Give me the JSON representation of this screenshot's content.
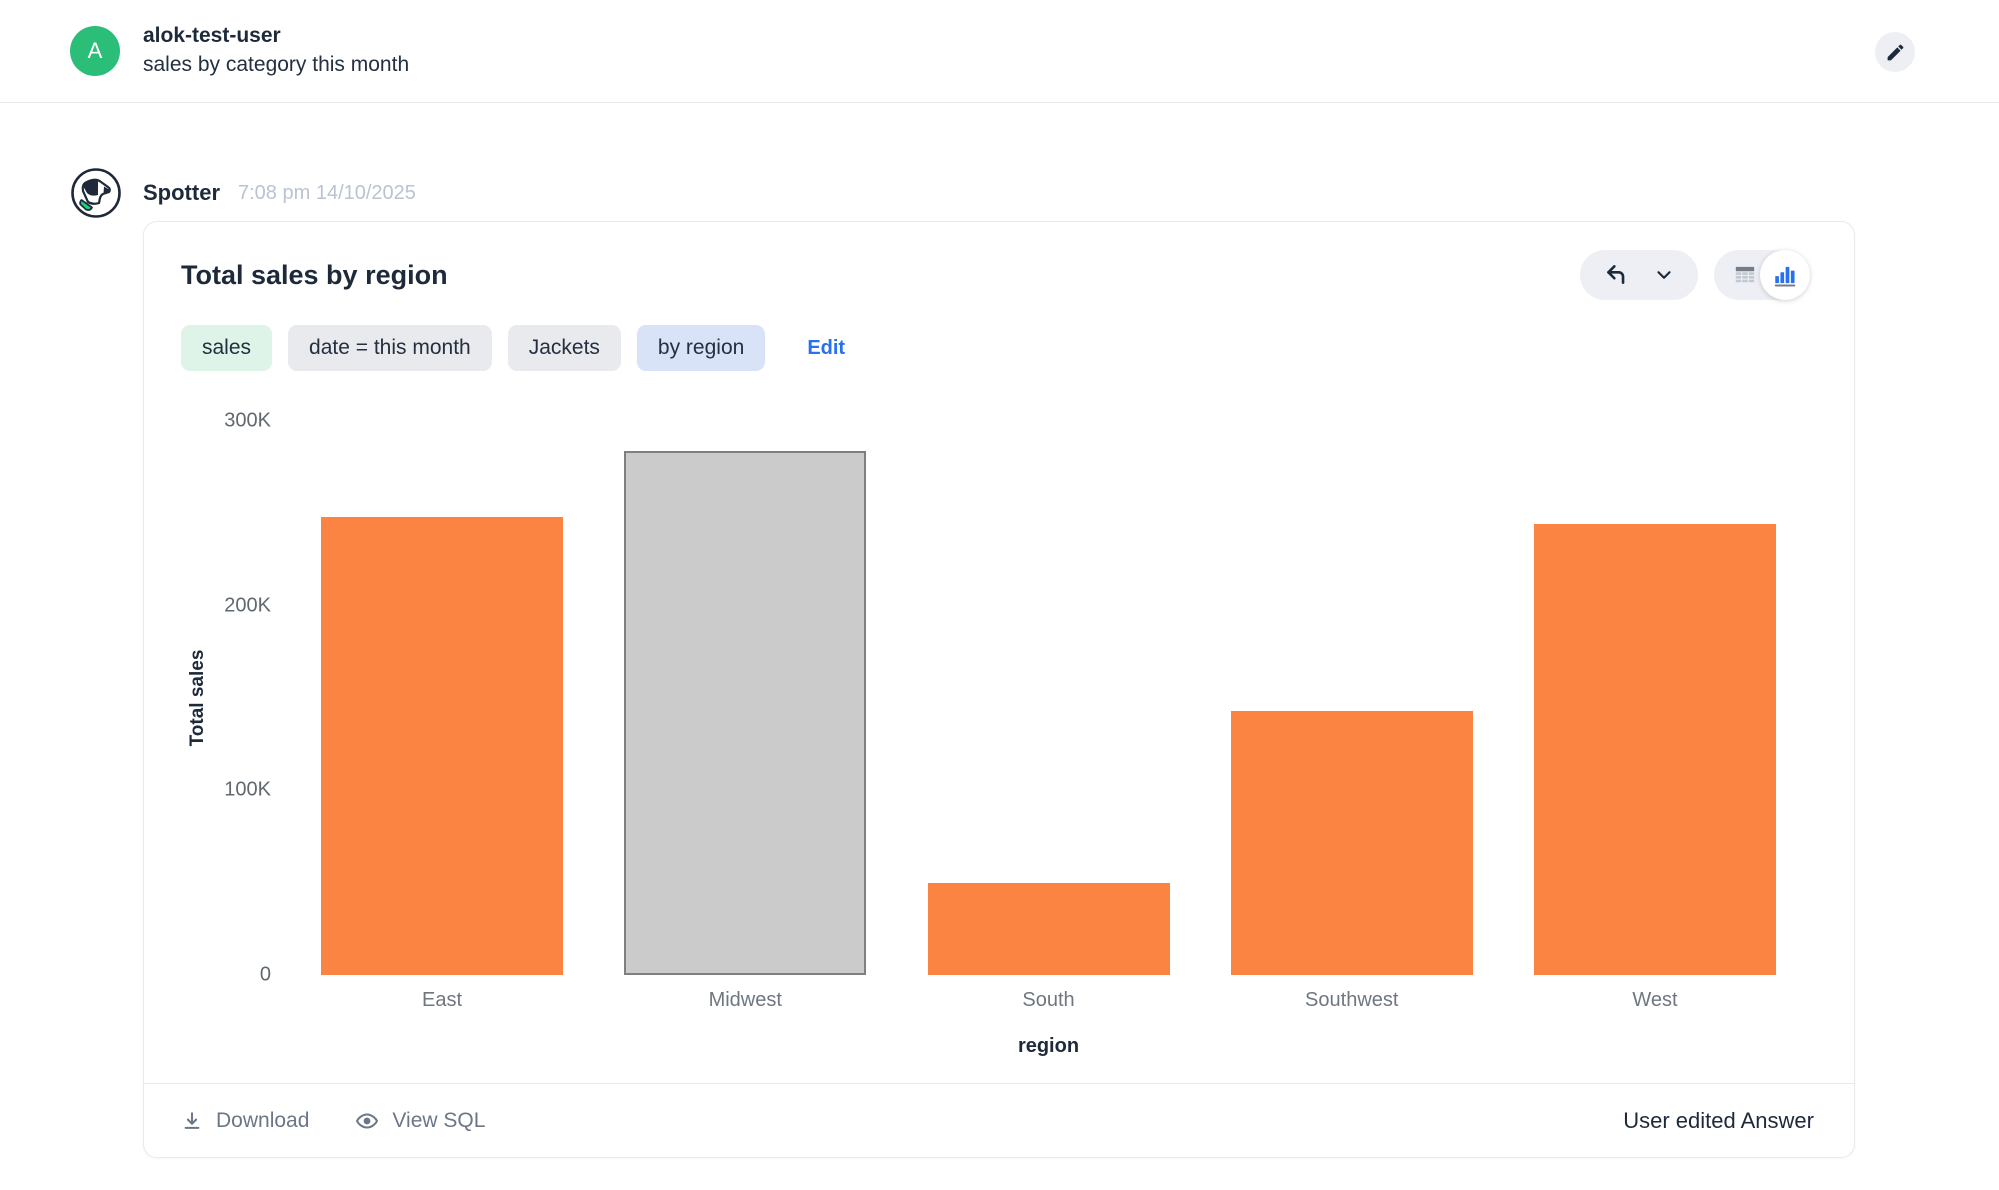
{
  "user_message": {
    "avatar_initial": "A",
    "username": "alok-test-user",
    "message": "sales by category this month"
  },
  "assistant": {
    "name": "Spotter",
    "timestamp": "7:08 pm 14/10/2025"
  },
  "answer_card": {
    "title": "Total sales by region",
    "tokens": [
      {
        "label": "sales",
        "style": "green"
      },
      {
        "label": "date = this month",
        "style": "gray"
      },
      {
        "label": "Jackets",
        "style": "gray"
      },
      {
        "label": "by region",
        "style": "blue"
      }
    ],
    "edit_label": "Edit",
    "footer": {
      "download_label": "Download",
      "view_sql_label": "View SQL",
      "status_label": "User edited Answer"
    }
  },
  "chart_data": {
    "type": "bar",
    "title": "Total sales by region",
    "categories": [
      "East",
      "Midwest",
      "South",
      "Southwest",
      "West"
    ],
    "values": [
      248000,
      284000,
      50000,
      143000,
      244000
    ],
    "xlabel": "region",
    "ylabel": "Total sales",
    "ylim": [
      0,
      300000
    ],
    "yticks": [
      {
        "label": "300K",
        "value": 300000
      },
      {
        "label": "200K",
        "value": 200000
      },
      {
        "label": "100K",
        "value": 100000
      },
      {
        "label": "0",
        "value": 0
      }
    ],
    "grid": false,
    "legend": false,
    "bar_color": "#FB8443",
    "highlight": {
      "category": "Midwest",
      "fill": "#CBCBCB",
      "border": "#7F7F7F"
    }
  },
  "colors": {
    "bar_orange": "#FB8443",
    "bar_highlight_fill": "#CBCBCB",
    "bar_highlight_border": "#7F7F7F",
    "avatar_green": "#2BBE79",
    "collar_green": "#21D07C",
    "link_blue": "#2770EF",
    "chip_green_bg": "#DEF4E8",
    "chip_gray_bg": "#E9EAEE",
    "chip_blue_bg": "#D8E3F8",
    "pill_bg": "#EDEFF4",
    "text_dark": "#1E2A3A",
    "text_gray": "#6B7686",
    "text_muted": "#B9C3D2",
    "border_light": "#E9EAEE",
    "axis_gray": "#60696F"
  }
}
